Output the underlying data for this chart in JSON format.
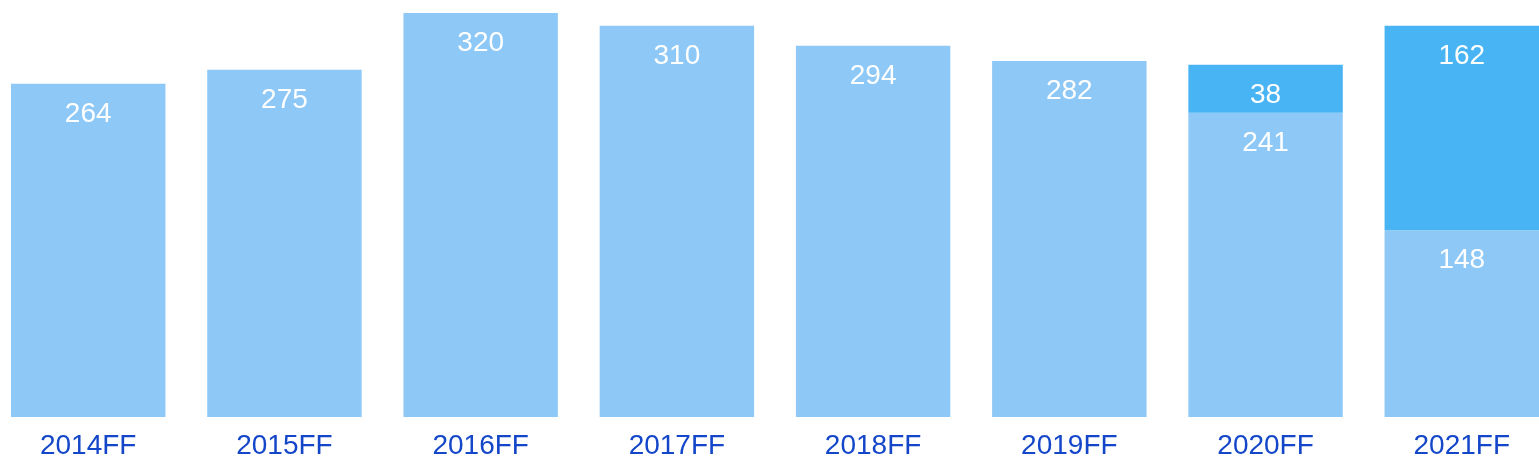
{
  "chart_data": {
    "type": "bar",
    "stacked": true,
    "data_labels": true,
    "grid": false,
    "tick_labels": "x",
    "categories": [
      "2014FF",
      "2015FF",
      "2016FF",
      "2017FF",
      "2018FF",
      "2019FF",
      "2020FF",
      "2021FF"
    ],
    "series": [
      {
        "color": "#8dc8f6",
        "values": [
          264,
          275,
          320,
          310,
          294,
          282,
          241,
          148
        ]
      },
      {
        "color": "#48b4f4",
        "values": [
          null,
          null,
          null,
          null,
          null,
          null,
          38,
          162
        ]
      }
    ]
  }
}
